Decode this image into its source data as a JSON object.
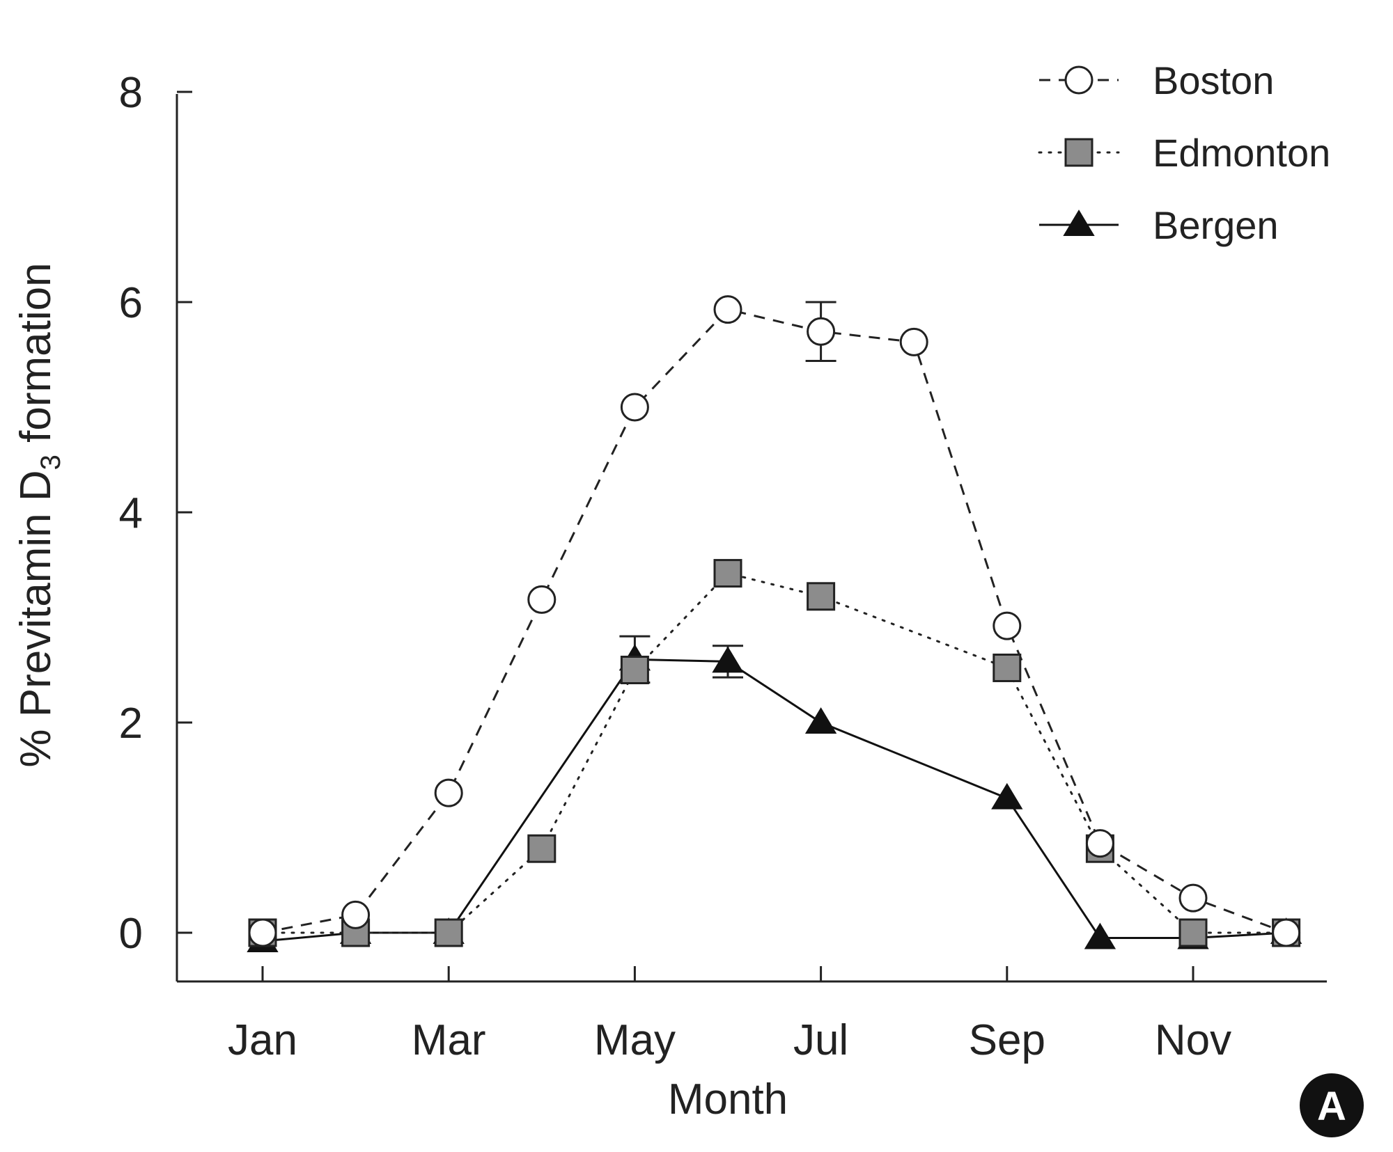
{
  "chart_data": {
    "type": "line",
    "xlabel": "Month",
    "ylabel_main": "% Previtamin D",
    "ylabel_sub": "3",
    "ylabel_tail": " formation",
    "ylim": [
      0,
      8
    ],
    "yticks": [
      "0",
      "2",
      "4",
      "6",
      "8"
    ],
    "x_tick_labels": [
      "Jan",
      "Mar",
      "May",
      "Jul",
      "Sep",
      "Nov"
    ],
    "x_tick_positions": [
      1,
      3,
      5,
      7,
      9,
      11
    ],
    "xlim": [
      1,
      12
    ],
    "grid": false,
    "legend_position": "top-right",
    "series": [
      {
        "name": "Boston",
        "marker": "open-circle",
        "line": "dashed",
        "color": "#222222",
        "fill": "#ffffff",
        "x": [
          1,
          2,
          3,
          4,
          5,
          6,
          7,
          8,
          9,
          10,
          11,
          12
        ],
        "y": [
          0.0,
          0.17,
          1.33,
          3.17,
          5.0,
          5.93,
          5.72,
          5.62,
          2.92,
          0.85,
          0.33,
          0.0
        ],
        "error": [
          0,
          0,
          0,
          0,
          0,
          0,
          0.28,
          0,
          0,
          0,
          0,
          0
        ]
      },
      {
        "name": "Edmonton",
        "marker": "gray-square",
        "line": "dotted",
        "color": "#222222",
        "fill": "#8c8c8c",
        "x": [
          1,
          2,
          3,
          4,
          5,
          6,
          7,
          8,
          9,
          10,
          11,
          12
        ],
        "y": [
          0.0,
          0.0,
          0.0,
          0.8,
          2.5,
          3.42,
          3.2,
          null,
          2.52,
          0.8,
          0.0,
          0.0
        ],
        "error": [
          0,
          0,
          0,
          0,
          0,
          0,
          0,
          0,
          0,
          0,
          0,
          0
        ]
      },
      {
        "name": "Bergen",
        "marker": "filled-triangle",
        "line": "solid",
        "color": "#111111",
        "fill": "#111111",
        "x": [
          1,
          2,
          3,
          4,
          5,
          6,
          7,
          8,
          9,
          10,
          11,
          12
        ],
        "y": [
          -0.08,
          0.0,
          0.0,
          null,
          2.6,
          2.58,
          2.0,
          null,
          1.28,
          -0.05,
          -0.05,
          0.0
        ],
        "error": [
          0,
          0,
          0,
          0,
          0.22,
          0.15,
          0,
          0,
          0,
          0,
          0,
          0
        ]
      }
    ]
  },
  "badge": {
    "text": "A"
  }
}
